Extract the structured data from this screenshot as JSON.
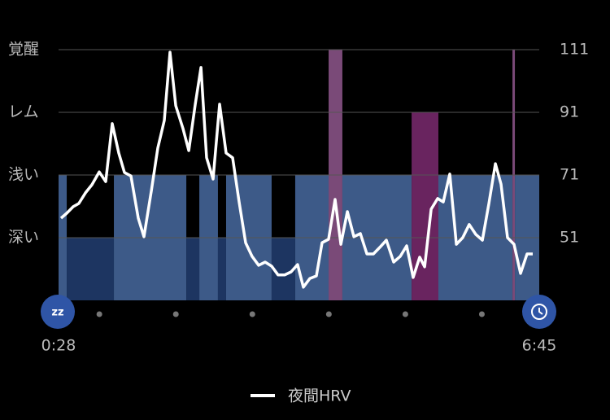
{
  "chart_data": {
    "type": "line",
    "xlim": [
      28,
      405
    ],
    "xticks": [
      {
        "value": 28,
        "label": "0:28"
      },
      {
        "value": 405,
        "label": "6:45"
      }
    ],
    "hour_marks": [
      60,
      120,
      180,
      240,
      300,
      360
    ],
    "ylim": [
      31,
      111
    ],
    "yticks": [
      51,
      71,
      91,
      111
    ],
    "yticks_left": [
      {
        "value": 51,
        "label": "深い"
      },
      {
        "value": 71,
        "label": "浅い"
      },
      {
        "value": 91,
        "label": "レム"
      },
      {
        "value": 111,
        "label": "覚醒"
      }
    ],
    "grid": true,
    "stages": [
      {
        "start": 28,
        "end": 34.4,
        "level": 71,
        "color": "#3d5a88"
      },
      {
        "start": 34.4,
        "end": 71.4,
        "level": 51,
        "color": "#1d3561"
      },
      {
        "start": 71.4,
        "end": 128.2,
        "level": 71,
        "color": "#3d5a88"
      },
      {
        "start": 128.2,
        "end": 138.4,
        "level": 51,
        "color": "#1d3561"
      },
      {
        "start": 138.4,
        "end": 153.0,
        "level": 71,
        "color": "#3d5a88"
      },
      {
        "start": 153.0,
        "end": 159.4,
        "level": 51,
        "color": "#1d3561"
      },
      {
        "start": 159.4,
        "end": 195.1,
        "level": 71,
        "color": "#3d5a88"
      },
      {
        "start": 195.1,
        "end": 213.6,
        "level": 51,
        "color": "#1d3561"
      },
      {
        "start": 213.6,
        "end": 239.8,
        "level": 71,
        "color": "#3d5a88"
      },
      {
        "start": 239.8,
        "end": 250.6,
        "level": 111,
        "color": "#7a4a78"
      },
      {
        "start": 250.6,
        "end": 304.9,
        "level": 71,
        "color": "#3d5a88"
      },
      {
        "start": 304.9,
        "end": 325.9,
        "level": 91,
        "color": "#69245f"
      },
      {
        "start": 325.9,
        "end": 384.0,
        "level": 71,
        "color": "#3d5a88"
      },
      {
        "start": 384.0,
        "end": 385.9,
        "level": 111,
        "color": "#7a4a78"
      },
      {
        "start": 385.9,
        "end": 405,
        "level": 71,
        "color": "#3d5a88"
      }
    ],
    "series": [
      {
        "name": "夜間HRV",
        "color": "#ffffff",
        "x": [
          29.9,
          34.4,
          39.5,
          43.9,
          49.1,
          54.2,
          59.9,
          65.0,
          70.1,
          75.2,
          79.7,
          84.8,
          90.5,
          95.0,
          100.7,
          105.8,
          110.9,
          115.4,
          119.9,
          125.6,
          130.1,
          135.2,
          139.7,
          144.1,
          149.2,
          154.3,
          159.4,
          164.5,
          169.6,
          174.7,
          179.8,
          184.9,
          190.0,
          195.1,
          200.2,
          205.3,
          210.4,
          215.5,
          220.0,
          225.1,
          230.2,
          234.7,
          239.8,
          244.9,
          249.4,
          254.5,
          259.6,
          264.7,
          269.8,
          274.9,
          280.0,
          285.1,
          290.8,
          295.9,
          301.0,
          306.1,
          311.2,
          315.1,
          320.2,
          325.3,
          329.7,
          334.8,
          340.0,
          345.0,
          350.1,
          355.3,
          360.4,
          365.5,
          370.6,
          375.0,
          380.1,
          385.2,
          390.3,
          395.4,
          399.9
        ],
        "values": [
          57.2,
          58.8,
          60.9,
          61.9,
          65.3,
          67.9,
          72.0,
          68.9,
          87.4,
          78.0,
          71.8,
          70.7,
          57.2,
          51.3,
          65.8,
          79.6,
          88.4,
          110.2,
          93.1,
          85.8,
          78.8,
          93.6,
          105.3,
          76.5,
          69.7,
          93.6,
          78.0,
          76.5,
          62.4,
          49.4,
          45.0,
          42.2,
          43.2,
          41.9,
          39.1,
          39.1,
          40.1,
          42.4,
          35.2,
          38.0,
          38.8,
          49.4,
          50.5,
          63.2,
          48.9,
          59.3,
          51.3,
          52.3,
          45.8,
          45.8,
          47.9,
          50.2,
          43.2,
          45.0,
          48.4,
          38.3,
          44.8,
          41.7,
          60.1,
          63.5,
          62.4,
          71.3,
          48.9,
          51.0,
          55.2,
          52.0,
          50.2,
          61.9,
          74.6,
          68.1,
          51.0,
          48.9,
          39.6,
          45.8,
          45.8
        ]
      }
    ]
  }
}
